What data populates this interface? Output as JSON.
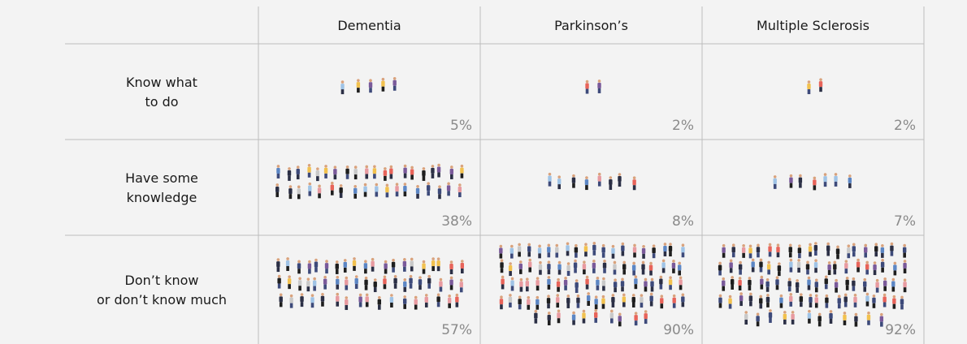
{
  "table": {
    "columns": [
      "Dementia",
      "Parkinson’s",
      "Multiple Sclerosis"
    ],
    "rows": [
      {
        "label": [
          "Know what",
          "to do"
        ],
        "values": [
          5,
          2,
          2
        ],
        "value_labels": [
          "5%",
          "2%",
          "2%"
        ]
      },
      {
        "label": [
          "Have some",
          "knowledge"
        ],
        "values": [
          38,
          8,
          7
        ],
        "value_labels": [
          "38%",
          "8%",
          "7%"
        ]
      },
      {
        "label": [
          "Don’t know",
          "or don’t know much"
        ],
        "values": [
          57,
          90,
          92
        ],
        "value_labels": [
          "57%",
          "90%",
          "92%"
        ]
      }
    ]
  }
}
